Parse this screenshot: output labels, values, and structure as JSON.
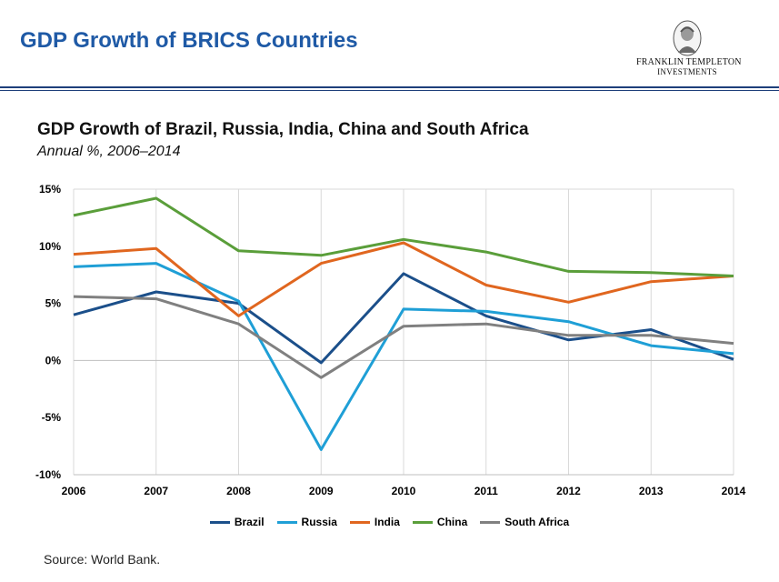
{
  "header": {
    "title": "GDP Growth of BRICS Countries",
    "logo_line1": "FRANKLIN TEMPLETON",
    "logo_line2": "INVESTMENTS"
  },
  "source": "Source: World Bank.",
  "colors": {
    "title": "#1f5aa6",
    "rule": "#1e3f7a"
  },
  "chart_data": {
    "type": "line",
    "title": "GDP Growth of Brazil, Russia, India, China and South Africa",
    "subtitle": "Annual %, 2006–2014",
    "xlabel": "",
    "ylabel": "",
    "categories": [
      "2006",
      "2007",
      "2008",
      "2009",
      "2010",
      "2011",
      "2012",
      "2013",
      "2014"
    ],
    "ylim": [
      -10,
      15
    ],
    "yticks": [
      15,
      10,
      5,
      0,
      -5,
      -10
    ],
    "ytick_labels": [
      "15%",
      "10%",
      "5%",
      "0%",
      "-5%",
      "-10%"
    ],
    "grid": "vertical",
    "legend_position": "bottom",
    "series": [
      {
        "name": "Brazil",
        "color": "#1b4f8a",
        "values": [
          4.0,
          6.0,
          5.0,
          -0.2,
          7.6,
          3.9,
          1.8,
          2.7,
          0.1
        ]
      },
      {
        "name": "Russia",
        "color": "#1f9fd6",
        "values": [
          8.2,
          8.5,
          5.2,
          -7.8,
          4.5,
          4.3,
          3.4,
          1.3,
          0.6
        ]
      },
      {
        "name": "India",
        "color": "#e0661f",
        "values": [
          9.3,
          9.8,
          3.9,
          8.5,
          10.3,
          6.6,
          5.1,
          6.9,
          7.4
        ]
      },
      {
        "name": "China",
        "color": "#5a9e3a",
        "values": [
          12.7,
          14.2,
          9.6,
          9.2,
          10.6,
          9.5,
          7.8,
          7.7,
          7.4
        ]
      },
      {
        "name": "South Africa",
        "color": "#808080",
        "values": [
          5.6,
          5.4,
          3.2,
          -1.5,
          3.0,
          3.2,
          2.2,
          2.2,
          1.5
        ]
      }
    ]
  }
}
